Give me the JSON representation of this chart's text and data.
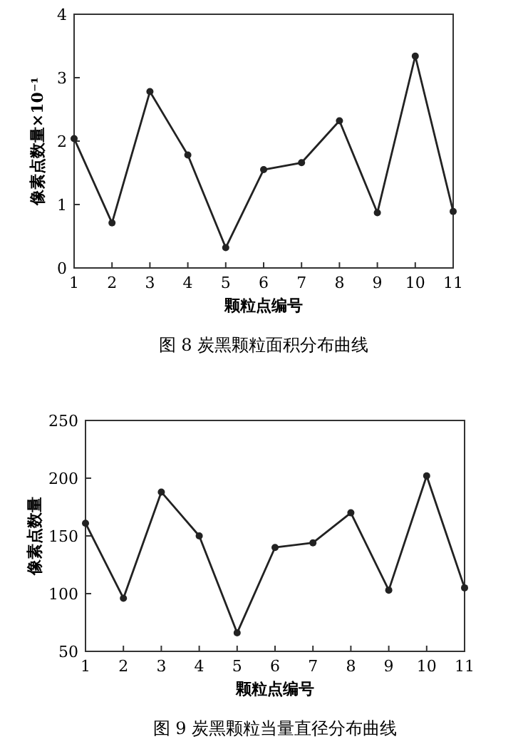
{
  "chart_data": [
    {
      "type": "line",
      "title": "图 8  炭黑颗粒面积分布曲线",
      "xlabel": "颗粒点编号",
      "ylabel": "像素点数量×10⁻¹",
      "x": [
        1,
        2,
        3,
        4,
        5,
        6,
        7,
        8,
        9,
        10,
        11
      ],
      "xlim": [
        1,
        11
      ],
      "xticks": [
        1,
        2,
        3,
        4,
        5,
        6,
        7,
        8,
        9,
        10,
        11
      ],
      "ylim": [
        0,
        4
      ],
      "yticks": [
        0,
        1,
        2,
        3,
        4
      ],
      "marker": "circle",
      "line_style": "solid",
      "grid": false,
      "series": [
        {
          "color": "#222222",
          "values": [
            2.04,
            0.71,
            2.78,
            1.78,
            0.32,
            1.55,
            1.66,
            2.32,
            0.87,
            3.34,
            0.89
          ]
        }
      ]
    },
    {
      "type": "line",
      "title": "图 9  炭黑颗粒当量直径分布曲线",
      "xlabel": "颗粒点编号",
      "ylabel": "像素点数量",
      "x": [
        1,
        2,
        3,
        4,
        5,
        6,
        7,
        8,
        9,
        10,
        11
      ],
      "xlim": [
        1,
        11
      ],
      "xticks": [
        1,
        2,
        3,
        4,
        5,
        6,
        7,
        8,
        9,
        10,
        11
      ],
      "ylim": [
        50,
        250
      ],
      "yticks": [
        50,
        100,
        150,
        200,
        250
      ],
      "marker": "circle",
      "line_style": "solid",
      "grid": false,
      "series": [
        {
          "color": "#222222",
          "values": [
            161,
            96,
            188,
            150,
            66,
            140,
            144,
            170,
            103,
            202,
            105
          ]
        }
      ]
    }
  ]
}
